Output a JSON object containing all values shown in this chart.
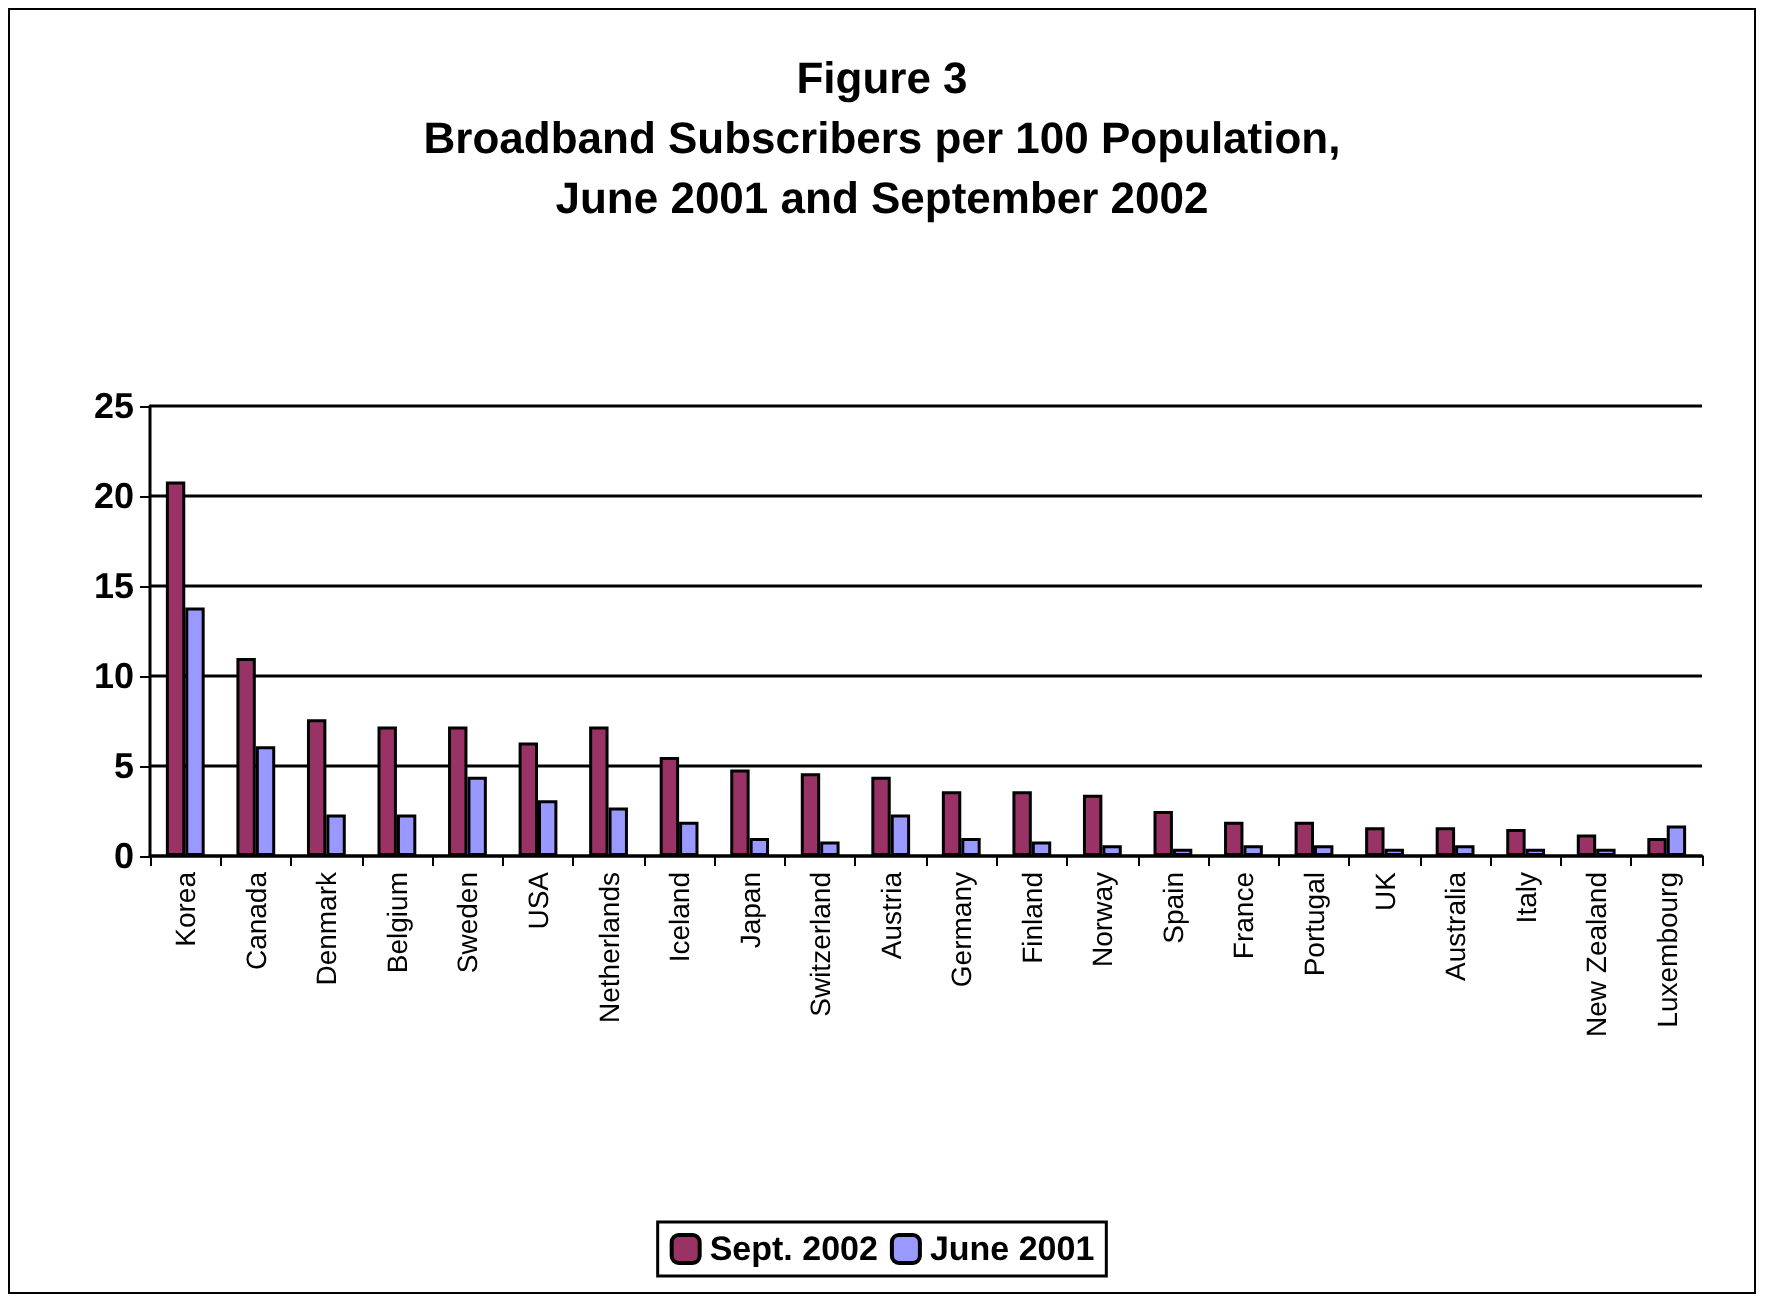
{
  "chart_data": {
    "type": "bar",
    "title": "Figure 3\nBroadband Subscribers per 100 Population,\nJune 2001 and September 2002",
    "categories": [
      "Korea",
      "Canada",
      "Denmark",
      "Belgium",
      "Sweden",
      "USA",
      "Netherlands",
      "Iceland",
      "Japan",
      "Switzerland",
      "Austria",
      "Germany",
      "Finland",
      "Norway",
      "Spain",
      "France",
      "Portugal",
      "UK",
      "Australia",
      "Italy",
      "New Zealand",
      "Luxembourg"
    ],
    "series": [
      {
        "name": "Sept. 2002",
        "color": "#993366",
        "values": [
          20.8,
          11.0,
          7.6,
          7.2,
          7.2,
          6.3,
          7.2,
          5.5,
          4.8,
          4.6,
          4.4,
          3.6,
          3.6,
          3.4,
          2.5,
          1.9,
          1.9,
          1.6,
          1.6,
          1.5,
          1.2,
          1.0
        ]
      },
      {
        "name": "June 2001",
        "color": "#9999ff",
        "values": [
          13.8,
          6.1,
          2.3,
          2.3,
          4.4,
          3.1,
          2.7,
          1.9,
          1.0,
          0.8,
          2.3,
          1.0,
          0.8,
          0.6,
          0.4,
          0.6,
          0.6,
          0.4,
          0.6,
          0.4,
          0.4,
          1.7
        ]
      }
    ],
    "ylim": [
      0,
      25
    ],
    "yticks": [
      0,
      5,
      10,
      15,
      20,
      25
    ],
    "grid": "y",
    "legend": "bottom"
  }
}
